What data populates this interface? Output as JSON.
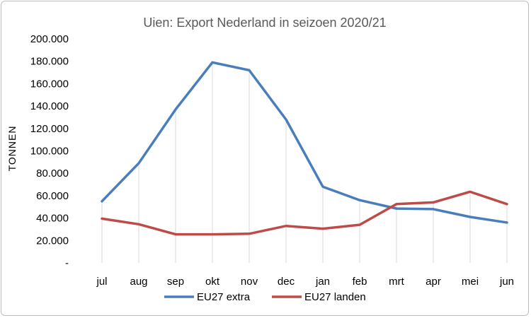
{
  "chart_data": {
    "type": "line",
    "title": "Uien:  Export  Nederland  in seizoen  2020/21",
    "xlabel": "",
    "ylabel": "TONNEN",
    "categories": [
      "jul",
      "aug",
      "sep",
      "okt",
      "nov",
      "dec",
      "jan",
      "feb",
      "mrt",
      "apr",
      "mei",
      "jun"
    ],
    "yticks": [
      "-",
      "20.000",
      "40.000",
      "60.000",
      "80.000",
      "100.000",
      "120.000",
      "140.000",
      "160.000",
      "180.000",
      "200.000"
    ],
    "ylim": [
      0,
      200000
    ],
    "grid": "vertical",
    "legend_position": "bottom",
    "series": [
      {
        "name": "EU27 extra",
        "color": "#4a7ebb",
        "values": [
          55000,
          89000,
          137000,
          179000,
          172000,
          128000,
          68000,
          56000,
          48500,
          48000,
          41000,
          36000
        ]
      },
      {
        "name": "EU27 landen",
        "color": "#be4b48",
        "values": [
          39500,
          34500,
          25500,
          25500,
          26000,
          33000,
          30500,
          34000,
          52500,
          54000,
          63500,
          52500
        ]
      }
    ]
  }
}
